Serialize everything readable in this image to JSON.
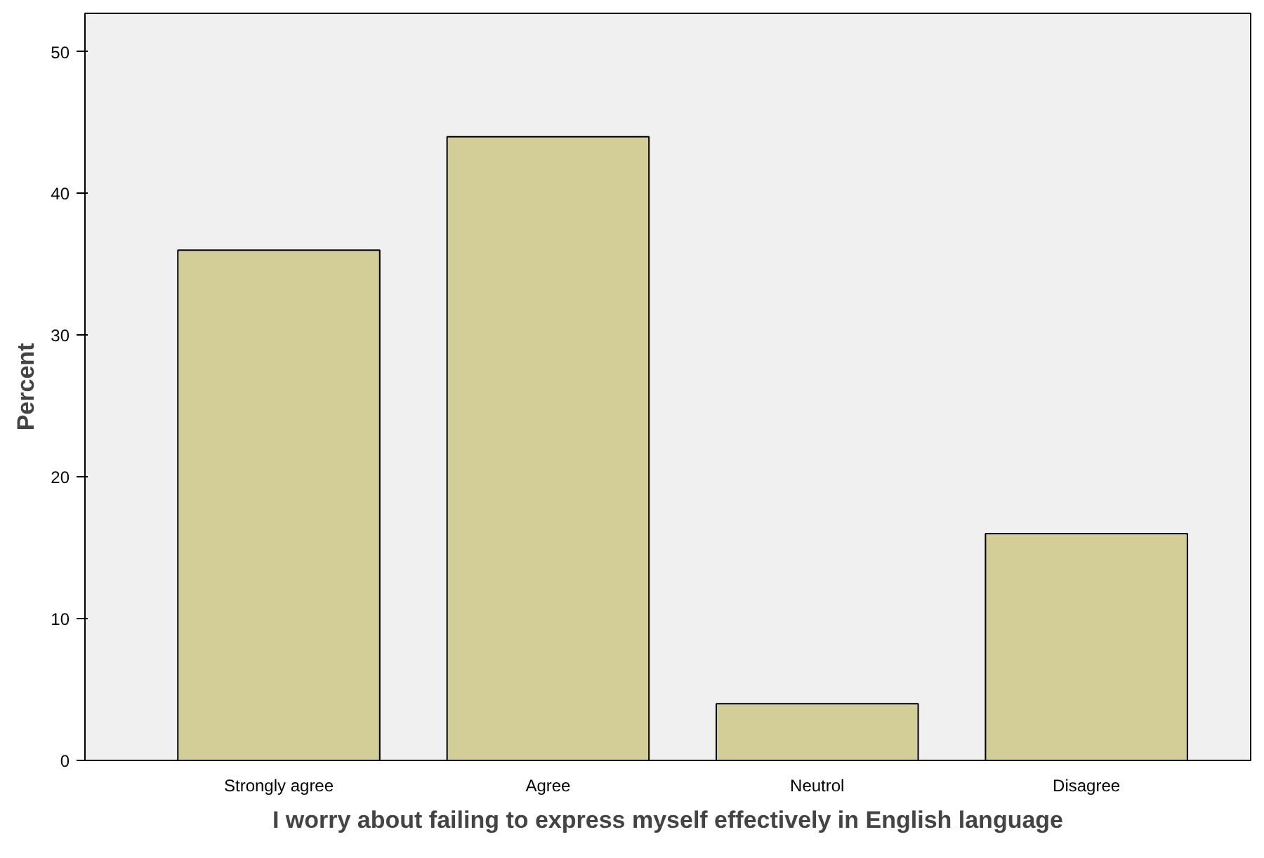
{
  "chart_data": {
    "type": "bar",
    "xlabel": "I worry about failing to express myself effectively in English language",
    "ylabel": "Percent",
    "categories": [
      "Strongly agree",
      "Agree",
      "Neutrol",
      "Disagree"
    ],
    "values": [
      36,
      44,
      4,
      16
    ],
    "color": "#d3ce97",
    "ylim": [
      0,
      52.7
    ],
    "yticks": [
      0,
      10,
      20,
      30,
      40,
      50
    ],
    "grid": false
  }
}
